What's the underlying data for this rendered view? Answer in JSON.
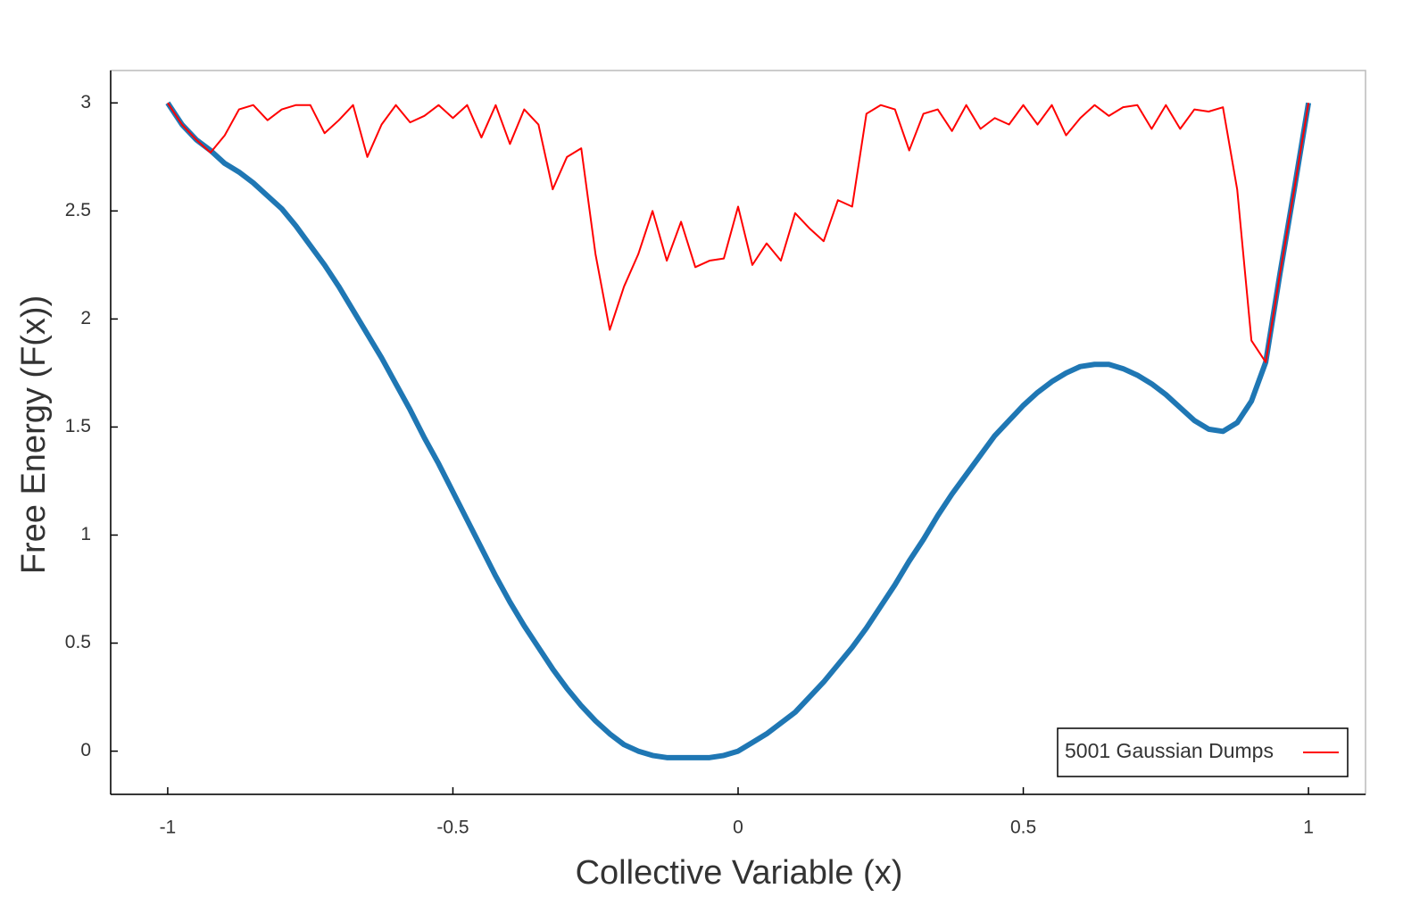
{
  "chart_data": {
    "type": "line",
    "xlabel": "Collective Variable (x)",
    "ylabel": "Free Energy (F(x))",
    "x": [
      -1,
      -0.975,
      -0.95,
      -0.925,
      -0.9,
      -0.875,
      -0.85,
      -0.825,
      -0.8,
      -0.775,
      -0.75,
      -0.725,
      -0.7,
      -0.675,
      -0.65,
      -0.625,
      -0.6,
      -0.575,
      -0.55,
      -0.525,
      -0.5,
      -0.475,
      -0.45,
      -0.425,
      -0.4,
      -0.375,
      -0.35,
      -0.325,
      -0.3,
      -0.275,
      -0.25,
      -0.225,
      -0.2,
      -0.175,
      -0.15,
      -0.125,
      -0.1,
      -0.075,
      -0.05,
      -0.025,
      0,
      0.025,
      0.05,
      0.075,
      0.1,
      0.125,
      0.15,
      0.175,
      0.2,
      0.225,
      0.25,
      0.275,
      0.3,
      0.325,
      0.35,
      0.375,
      0.4,
      0.425,
      0.45,
      0.475,
      0.5,
      0.525,
      0.55,
      0.575,
      0.6,
      0.625,
      0.65,
      0.675,
      0.7,
      0.725,
      0.75,
      0.775,
      0.8,
      0.825,
      0.85,
      0.875,
      0.9,
      0.925,
      0.95,
      0.975,
      1
    ],
    "series": [
      {
        "color": "#1f77b4",
        "values": [
          3.0,
          2.9,
          2.83,
          2.78,
          2.72,
          2.68,
          2.63,
          2.57,
          2.51,
          2.43,
          2.34,
          2.25,
          2.15,
          2.04,
          1.93,
          1.82,
          1.7,
          1.58,
          1.45,
          1.33,
          1.2,
          1.07,
          0.94,
          0.81,
          0.69,
          0.58,
          0.48,
          0.38,
          0.29,
          0.21,
          0.14,
          0.08,
          0.03,
          0.0,
          -0.02,
          -0.03,
          -0.03,
          -0.03,
          -0.03,
          -0.02,
          0.0,
          0.04,
          0.08,
          0.13,
          0.18,
          0.25,
          0.32,
          0.4,
          0.48,
          0.57,
          0.67,
          0.77,
          0.88,
          0.98,
          1.09,
          1.19,
          1.28,
          1.37,
          1.46,
          1.53,
          1.6,
          1.66,
          1.71,
          1.75,
          1.78,
          1.79,
          1.79,
          1.77,
          1.74,
          1.7,
          1.65,
          1.59,
          1.53,
          1.49,
          1.48,
          1.52,
          1.62,
          1.8,
          2.21,
          2.6,
          3.0
        ]
      },
      {
        "name": "5001 Gaussian Dumps",
        "color": "#ff0000",
        "values": [
          3.0,
          2.9,
          2.83,
          2.77,
          2.85,
          2.97,
          2.99,
          2.92,
          2.97,
          2.99,
          2.99,
          2.86,
          2.92,
          2.99,
          2.75,
          2.9,
          2.99,
          2.91,
          2.94,
          2.99,
          2.93,
          2.99,
          2.84,
          2.99,
          2.81,
          2.97,
          2.9,
          2.6,
          2.75,
          2.79,
          2.3,
          1.95,
          2.15,
          2.3,
          2.5,
          2.27,
          2.45,
          2.24,
          2.27,
          2.28,
          2.52,
          2.25,
          2.35,
          2.27,
          2.49,
          2.42,
          2.36,
          2.55,
          2.52,
          2.95,
          2.99,
          2.97,
          2.78,
          2.95,
          2.97,
          2.87,
          2.99,
          2.88,
          2.93,
          2.9,
          2.99,
          2.9,
          2.99,
          2.85,
          2.93,
          2.99,
          2.94,
          2.98,
          2.99,
          2.88,
          2.99,
          2.88,
          2.97,
          2.96,
          2.98,
          2.6,
          1.9,
          1.8,
          2.21,
          2.6,
          3.0
        ]
      }
    ],
    "xlim": [
      -1.1,
      1.1
    ],
    "xticks": [
      -1,
      -0.5,
      0,
      0.5,
      1
    ],
    "ylim": [
      -0.2,
      3.15
    ],
    "yticks": [
      0,
      0.5,
      1,
      1.5,
      2,
      2.5,
      3
    ],
    "grid": false,
    "legend": "lower right"
  }
}
